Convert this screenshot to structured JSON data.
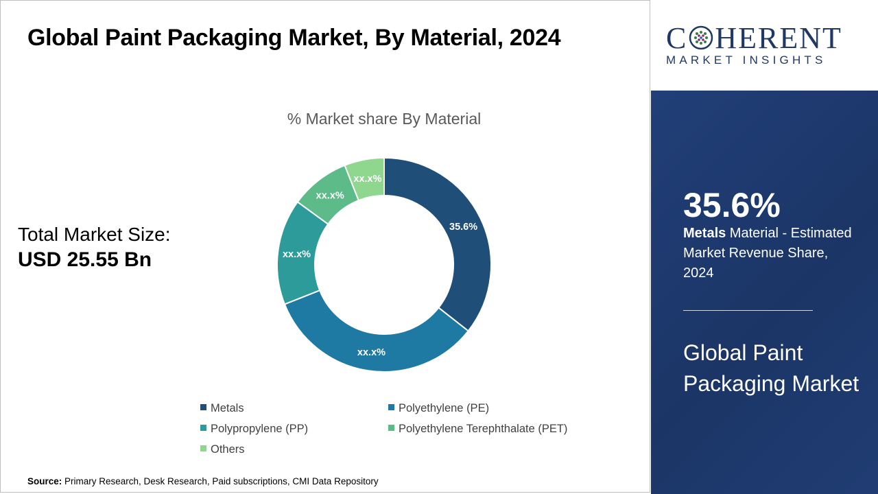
{
  "header": {
    "title": "Global Paint Packaging Market, By Material, 2024"
  },
  "market_size": {
    "label": "Total Market Size:",
    "value": "USD 25.55 Bn"
  },
  "source": {
    "label": "Source:",
    "text": " Primary Research, Desk Research, Paid subscriptions, CMI Data Repository"
  },
  "logo": {
    "main": "COHERENT",
    "main_left": "C",
    "main_right": "HERENT",
    "sub": "MARKET INSIGHTS"
  },
  "side_panel": {
    "stat": "35.6%",
    "desc_bold": "Metals",
    "desc_rest": " Material - Estimated Market Revenue Share, 2024",
    "market_name": "Global Paint Packaging Market"
  },
  "chart_data": {
    "type": "pie",
    "donut": true,
    "title": "% Market share By Material",
    "legend_position": "bottom",
    "slices": [
      {
        "name": "Metals",
        "value": 35.6,
        "label": "35.6%",
        "color": "#1f4e79"
      },
      {
        "name": "Polyethylene (PE)",
        "value": 33.4,
        "label": "xx.x%",
        "color": "#1f7aa3"
      },
      {
        "name": "Polypropylene (PP)",
        "value": 16.0,
        "label": "xx.x%",
        "color": "#2e9b9b"
      },
      {
        "name": "Polyethylene Terephthalate (PET)",
        "value": 9.0,
        "label": "xx.x%",
        "color": "#5dbb8a"
      },
      {
        "name": "Others",
        "value": 6.0,
        "label": "xx.x%",
        "color": "#8fd68f"
      }
    ]
  }
}
